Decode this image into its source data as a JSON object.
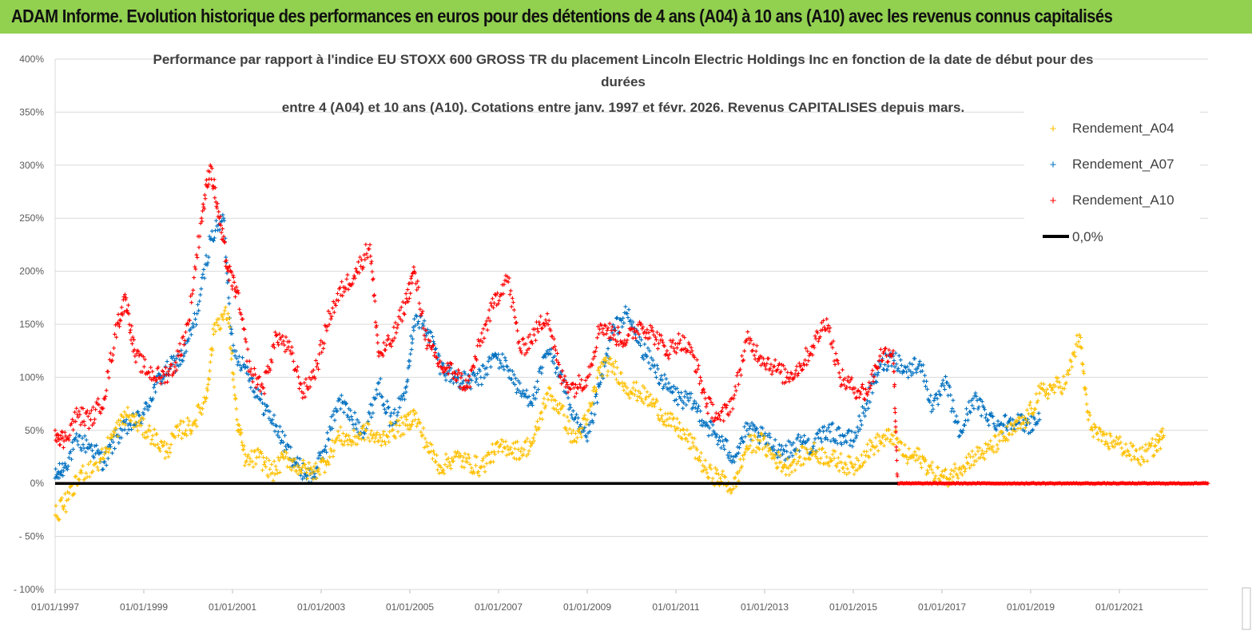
{
  "banner": {
    "title": "ADAM Informe. Evolution historique des performances en euros pour des détentions de 4 ans (A04) à 10 ans (A10) avec les revenus connus capitalisés",
    "background": "#92d050"
  },
  "chart_data": {
    "type": "scatter",
    "title_lines": [
      "Performance par rapport à l'indice EU STOXX 600 GROSS TR  du placement Lincoln Electric Holdings Inc en fonction de la date de début pour des",
      "durées",
      "entre 4 (A04) et 10 ans (A10). Cotations entre janv. 1997 et févr. 2026. Revenus CAPITALISES depuis mars."
    ],
    "xlabel": "",
    "ylabel": "",
    "x_ticks": [
      "01/01/1997",
      "01/01/1999",
      "01/01/2001",
      "01/01/2003",
      "01/01/2005",
      "01/01/2007",
      "01/01/2009",
      "01/01/2011",
      "01/01/2013",
      "01/01/2015",
      "01/01/2017",
      "01/01/2019",
      "01/01/2021"
    ],
    "xlim": [
      1997.0,
      2023.0
    ],
    "y_ticks": [
      "400%",
      "350%",
      "300%",
      "250%",
      "200%",
      "150%",
      "100%",
      "50%",
      "0%",
      "- 50%",
      "- 100%"
    ],
    "ylim": [
      -100,
      400
    ],
    "legend_position": "top-right",
    "series": [
      {
        "name": "Rendement_A04",
        "color": "#ffc000",
        "marker": "+",
        "points": [
          [
            1997.0,
            -30
          ],
          [
            1997.3,
            -15
          ],
          [
            1997.6,
            10
          ],
          [
            1998.0,
            20
          ],
          [
            1998.3,
            45
          ],
          [
            1998.6,
            65
          ],
          [
            1998.9,
            55
          ],
          [
            1999.2,
            45
          ],
          [
            1999.5,
            30
          ],
          [
            1999.8,
            50
          ],
          [
            2000.1,
            55
          ],
          [
            2000.4,
            80
          ],
          [
            2000.6,
            150
          ],
          [
            2000.9,
            160
          ],
          [
            2001.1,
            60
          ],
          [
            2001.3,
            20
          ],
          [
            2001.6,
            25
          ],
          [
            2001.9,
            10
          ],
          [
            2002.2,
            25
          ],
          [
            2002.5,
            15
          ],
          [
            2002.8,
            10
          ],
          [
            2003.1,
            20
          ],
          [
            2003.4,
            45
          ],
          [
            2003.7,
            40
          ],
          [
            2004.0,
            50
          ],
          [
            2004.3,
            40
          ],
          [
            2004.6,
            50
          ],
          [
            2004.9,
            55
          ],
          [
            2005.1,
            65
          ],
          [
            2005.4,
            35
          ],
          [
            2005.7,
            15
          ],
          [
            2006.0,
            25
          ],
          [
            2006.3,
            20
          ],
          [
            2006.6,
            15
          ],
          [
            2006.9,
            30
          ],
          [
            2007.2,
            35
          ],
          [
            2007.5,
            30
          ],
          [
            2007.8,
            40
          ],
          [
            2008.1,
            85
          ],
          [
            2008.4,
            70
          ],
          [
            2008.7,
            40
          ],
          [
            2009.0,
            60
          ],
          [
            2009.3,
            110
          ],
          [
            2009.6,
            110
          ],
          [
            2009.9,
            90
          ],
          [
            2010.2,
            85
          ],
          [
            2010.5,
            75
          ],
          [
            2010.8,
            60
          ],
          [
            2011.1,
            50
          ],
          [
            2011.4,
            35
          ],
          [
            2011.7,
            10
          ],
          [
            2012.0,
            5
          ],
          [
            2012.3,
            -5
          ],
          [
            2012.6,
            35
          ],
          [
            2012.9,
            40
          ],
          [
            2013.2,
            25
          ],
          [
            2013.5,
            15
          ],
          [
            2013.8,
            25
          ],
          [
            2014.1,
            30
          ],
          [
            2014.4,
            25
          ],
          [
            2014.7,
            20
          ],
          [
            2015.0,
            15
          ],
          [
            2015.3,
            30
          ],
          [
            2015.6,
            40
          ],
          [
            2015.9,
            45
          ],
          [
            2016.2,
            25
          ],
          [
            2016.5,
            25
          ],
          [
            2016.8,
            10
          ],
          [
            2017.1,
            5
          ],
          [
            2017.4,
            15
          ],
          [
            2017.7,
            25
          ],
          [
            2018.0,
            30
          ],
          [
            2018.3,
            40
          ],
          [
            2018.6,
            50
          ],
          [
            2018.9,
            60
          ],
          [
            2019.2,
            85
          ],
          [
            2019.5,
            90
          ],
          [
            2019.8,
            95
          ],
          [
            2020.1,
            140
          ],
          [
            2020.3,
            60
          ],
          [
            2020.6,
            40
          ],
          [
            2020.9,
            40
          ],
          [
            2021.2,
            30
          ],
          [
            2021.5,
            25
          ],
          [
            2021.8,
            35
          ],
          [
            2022.0,
            45
          ]
        ]
      },
      {
        "name": "Rendement_A07",
        "color": "#0070c0",
        "marker": "+",
        "points": [
          [
            1997.0,
            5
          ],
          [
            1997.2,
            15
          ],
          [
            1997.5,
            40
          ],
          [
            1997.8,
            35
          ],
          [
            1998.1,
            20
          ],
          [
            1998.4,
            45
          ],
          [
            1998.7,
            55
          ],
          [
            1999.0,
            65
          ],
          [
            1999.3,
            95
          ],
          [
            1999.6,
            110
          ],
          [
            1999.9,
            120
          ],
          [
            2000.2,
            160
          ],
          [
            2000.5,
            230
          ],
          [
            2000.8,
            250
          ],
          [
            2001.0,
            125
          ],
          [
            2001.3,
            110
          ],
          [
            2001.6,
            80
          ],
          [
            2001.9,
            60
          ],
          [
            2002.2,
            35
          ],
          [
            2002.5,
            15
          ],
          [
            2002.8,
            5
          ],
          [
            2003.1,
            35
          ],
          [
            2003.4,
            80
          ],
          [
            2003.7,
            60
          ],
          [
            2004.0,
            50
          ],
          [
            2004.3,
            95
          ],
          [
            2004.6,
            55
          ],
          [
            2004.9,
            90
          ],
          [
            2005.1,
            155
          ],
          [
            2005.4,
            145
          ],
          [
            2005.7,
            110
          ],
          [
            2006.0,
            100
          ],
          [
            2006.3,
            95
          ],
          [
            2006.6,
            100
          ],
          [
            2006.9,
            120
          ],
          [
            2007.2,
            110
          ],
          [
            2007.5,
            85
          ],
          [
            2007.8,
            80
          ],
          [
            2008.1,
            125
          ],
          [
            2008.4,
            105
          ],
          [
            2008.7,
            60
          ],
          [
            2009.0,
            40
          ],
          [
            2009.3,
            95
          ],
          [
            2009.6,
            145
          ],
          [
            2009.9,
            160
          ],
          [
            2010.2,
            130
          ],
          [
            2010.5,
            110
          ],
          [
            2010.8,
            90
          ],
          [
            2011.1,
            80
          ],
          [
            2011.4,
            75
          ],
          [
            2011.7,
            55
          ],
          [
            2012.0,
            40
          ],
          [
            2012.3,
            25
          ],
          [
            2012.6,
            50
          ],
          [
            2012.9,
            45
          ],
          [
            2013.2,
            35
          ],
          [
            2013.5,
            30
          ],
          [
            2013.8,
            40
          ],
          [
            2014.1,
            35
          ],
          [
            2014.4,
            50
          ],
          [
            2014.7,
            45
          ],
          [
            2015.0,
            40
          ],
          [
            2015.3,
            75
          ],
          [
            2015.6,
            110
          ],
          [
            2015.9,
            120
          ],
          [
            2016.2,
            105
          ],
          [
            2016.5,
            115
          ],
          [
            2016.8,
            70
          ],
          [
            2017.1,
            95
          ],
          [
            2017.4,
            45
          ],
          [
            2017.7,
            80
          ],
          [
            2018.0,
            65
          ],
          [
            2018.3,
            55
          ],
          [
            2018.6,
            60
          ],
          [
            2018.9,
            55
          ],
          [
            2019.2,
            60
          ]
        ]
      },
      {
        "name": "Rendement_A10",
        "color": "#ff0000",
        "marker": "+",
        "points": [
          [
            1997.0,
            50
          ],
          [
            1997.2,
            40
          ],
          [
            1997.5,
            65
          ],
          [
            1997.8,
            60
          ],
          [
            1998.1,
            80
          ],
          [
            1998.4,
            150
          ],
          [
            1998.6,
            175
          ],
          [
            1998.8,
            120
          ],
          [
            1999.1,
            105
          ],
          [
            1999.4,
            100
          ],
          [
            1999.7,
            110
          ],
          [
            2000.0,
            150
          ],
          [
            2000.3,
            250
          ],
          [
            2000.5,
            300
          ],
          [
            2000.7,
            250
          ],
          [
            2000.9,
            200
          ],
          [
            2001.1,
            180
          ],
          [
            2001.4,
            105
          ],
          [
            2001.7,
            90
          ],
          [
            2002.0,
            140
          ],
          [
            2002.3,
            125
          ],
          [
            2002.6,
            85
          ],
          [
            2002.9,
            110
          ],
          [
            2003.2,
            160
          ],
          [
            2003.5,
            185
          ],
          [
            2003.8,
            200
          ],
          [
            2004.1,
            225
          ],
          [
            2004.3,
            120
          ],
          [
            2004.6,
            135
          ],
          [
            2004.9,
            170
          ],
          [
            2005.1,
            200
          ],
          [
            2005.4,
            130
          ],
          [
            2005.7,
            110
          ],
          [
            2006.0,
            105
          ],
          [
            2006.3,
            90
          ],
          [
            2006.6,
            135
          ],
          [
            2006.9,
            170
          ],
          [
            2007.2,
            195
          ],
          [
            2007.5,
            125
          ],
          [
            2007.8,
            140
          ],
          [
            2008.1,
            160
          ],
          [
            2008.4,
            100
          ],
          [
            2008.7,
            90
          ],
          [
            2009.0,
            100
          ],
          [
            2009.3,
            150
          ],
          [
            2009.6,
            140
          ],
          [
            2009.9,
            135
          ],
          [
            2010.2,
            150
          ],
          [
            2010.5,
            140
          ],
          [
            2010.8,
            125
          ],
          [
            2011.1,
            135
          ],
          [
            2011.4,
            120
          ],
          [
            2011.7,
            75
          ],
          [
            2012.0,
            60
          ],
          [
            2012.3,
            80
          ],
          [
            2012.6,
            135
          ],
          [
            2012.9,
            120
          ],
          [
            2013.2,
            110
          ],
          [
            2013.5,
            100
          ],
          [
            2013.8,
            110
          ],
          [
            2014.1,
            130
          ],
          [
            2014.4,
            155
          ],
          [
            2014.7,
            100
          ],
          [
            2015.0,
            90
          ],
          [
            2015.3,
            85
          ],
          [
            2015.6,
            120
          ],
          [
            2015.9,
            125
          ],
          [
            2016.0,
            0
          ],
          [
            2017.0,
            0
          ],
          [
            2018.0,
            0
          ],
          [
            2019.0,
            0
          ],
          [
            2020.0,
            0
          ],
          [
            2021.0,
            0
          ],
          [
            2022.0,
            0
          ],
          [
            2023.0,
            0
          ]
        ]
      },
      {
        "name": "0,0%",
        "color": "#000000",
        "marker": "line",
        "points": [
          [
            1997.0,
            0
          ],
          [
            2023.0,
            0
          ]
        ]
      }
    ]
  }
}
